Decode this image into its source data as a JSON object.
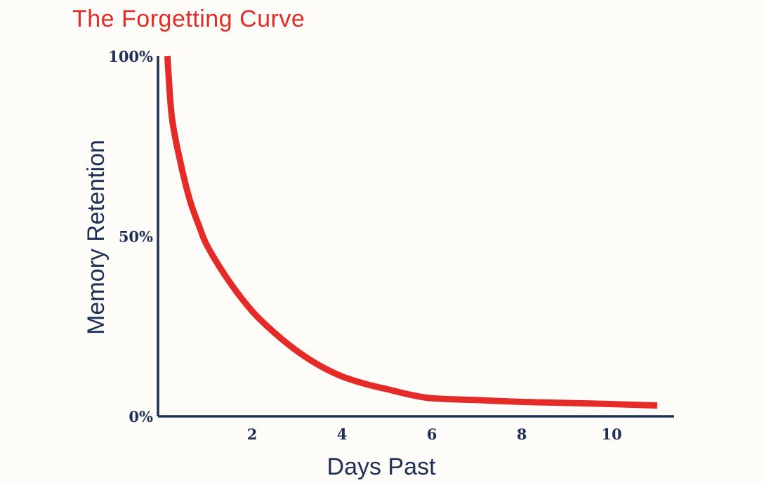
{
  "colors": {
    "background": "#fdfcf8",
    "title": "#e52b27",
    "curve": "#e52b27",
    "axis": "#1f3056",
    "text": "#1f3056"
  },
  "chart_data": {
    "type": "line",
    "title": "The Forgetting Curve",
    "xlabel": "Days Past",
    "ylabel": "Memory Retention",
    "xlim": [
      0,
      11.7
    ],
    "ylim": [
      0,
      100
    ],
    "x_ticks": [
      2,
      4,
      6,
      8,
      10
    ],
    "x_tick_labels": [
      "2",
      "4",
      "6",
      "8",
      "10"
    ],
    "y_ticks": [
      0,
      50,
      100
    ],
    "y_tick_labels": [
      "0%",
      "50%",
      "100%"
    ],
    "grid": false,
    "legend": "none",
    "series": [
      {
        "x": [
          0.1,
          0.2,
          0.4,
          0.6,
          0.8,
          1.0,
          1.5,
          2.0,
          2.5,
          3.0,
          3.5,
          4.0,
          4.5,
          5.0,
          5.5,
          6.0,
          7.0,
          8.0,
          9.0,
          10.0,
          11.0
        ],
        "y": [
          100,
          83,
          70,
          60,
          53,
          47,
          37,
          29,
          23,
          18,
          14,
          11,
          9,
          7.5,
          6,
          5,
          4.5,
          4,
          3.7,
          3.4,
          3
        ]
      }
    ]
  }
}
